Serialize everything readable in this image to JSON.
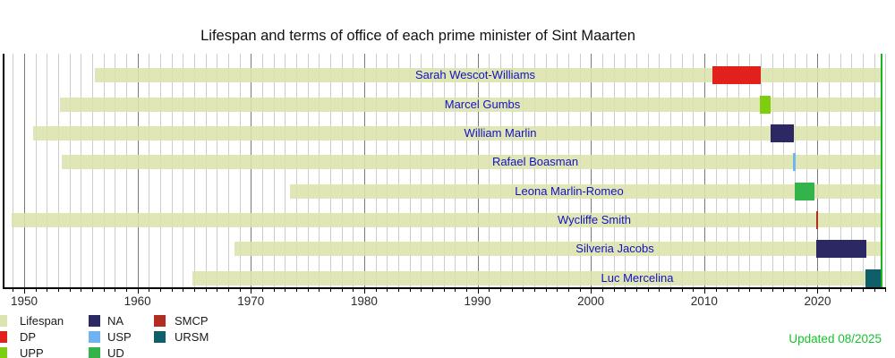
{
  "title": "Lifespan and terms of office of each prime minister of Sint Maarten",
  "updated_note": "Updated 08/2025",
  "colors": {
    "lifespan": "#dde3ae",
    "DP": "#e3211c",
    "UPP": "#7dce0e",
    "NA": "#2b2864",
    "USP": "#6db4f0",
    "UD": "#33b34a",
    "SMCP": "#b22c22",
    "URSM": "#0f5f6b",
    "now_line": "#1db51d",
    "updated_green": "#17c22e",
    "pm_label_blue": "#1212c4"
  },
  "chart_data": {
    "type": "bar",
    "subtype": "timeline-gantt",
    "title": "Lifespan and terms of office of each prime minister of Sint Maarten",
    "x_axis": {
      "unit": "year",
      "tick_years": [
        1950,
        1960,
        1970,
        1980,
        1990,
        2000,
        2010,
        2020
      ],
      "grid_start_year": 1949,
      "grid_end_year": 2026,
      "grid": true,
      "now_marker_year": 2025.65
    },
    "rows": [
      {
        "name": "Sarah Wescot-Williams",
        "party": "DP",
        "born": 1956.2,
        "term_start": 2010.75,
        "term_end": 2015.0,
        "lifespan_end": 2025.65,
        "label_cx": 531
      },
      {
        "name": "Marcel Gumbs",
        "party": "UPP",
        "born": 1953.15,
        "term_start": 2014.9,
        "term_end": 2015.85,
        "lifespan_end": 2025.65,
        "label_cx": 539
      },
      {
        "name": "William Marlin",
        "party": "NA",
        "born": 1950.8,
        "term_start": 2015.85,
        "term_end": 2017.9,
        "lifespan_end": 2025.65,
        "label_cx": 559
      },
      {
        "name": "Rafael Boasman",
        "party": "USP",
        "born": 1953.3,
        "term_start": 2017.85,
        "term_end": 2018.1,
        "lifespan_end": 2025.65,
        "label_cx": 598
      },
      {
        "name": "Leona Marlin-Romeo",
        "party": "UD",
        "born": 1973.45,
        "term_start": 2018.0,
        "term_end": 2019.75,
        "lifespan_end": 2025.65,
        "label_cx": 636
      },
      {
        "name": "Wycliffe Smith",
        "party": "SMCP",
        "born": 1948.9,
        "term_start": 2019.85,
        "term_end": 2020.0,
        "lifespan_end": 2025.65,
        "label_cx": 664
      },
      {
        "name": "Silveria Jacobs",
        "party": "NA",
        "born": 1968.55,
        "term_start": 2019.9,
        "term_end": 2024.3,
        "lifespan_end": 2025.65,
        "label_cx": 687
      },
      {
        "name": "Luc Mercelina",
        "party": "URSM",
        "born": 1964.85,
        "term_start": 2024.25,
        "term_end": 2025.65,
        "lifespan_end": 2025.65,
        "label_cx": 712
      }
    ],
    "legend": {
      "position": "bottom-left",
      "columns": [
        [
          {
            "label": "Lifespan",
            "key": "lifespan"
          },
          {
            "label": "DP",
            "key": "DP"
          },
          {
            "label": "UPP",
            "key": "UPP"
          }
        ],
        [
          {
            "label": "NA",
            "key": "NA"
          },
          {
            "label": "USP",
            "key": "USP"
          },
          {
            "label": "UD",
            "key": "UD"
          }
        ],
        [
          {
            "label": "SMCP",
            "key": "SMCP"
          },
          {
            "label": "URSM",
            "key": "URSM"
          }
        ]
      ]
    }
  }
}
